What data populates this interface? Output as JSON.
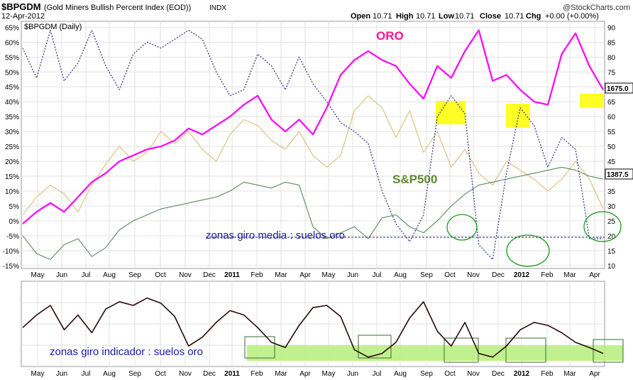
{
  "header": {
    "symbol": "$BPGDM",
    "name": "(Gold Miners Bullish Percent Index (EOD))",
    "exchange": "INDX",
    "date": "12-Apr-2012",
    "watermark": "@StockCharts.com",
    "open_label": "Open",
    "open": "10.71",
    "high_label": "High",
    "high": "10.71",
    "low_label": "Low",
    "low": "10.71",
    "close_label": "Close",
    "close": "10.71",
    "chg_label": "Chg",
    "chg": "+0.00 (+0.00%)",
    "panel_label": "$BPGDM (Daily)"
  },
  "annotations": {
    "oro": "ORO",
    "sp500": "S&P500",
    "zonas_media": "zonas giro media : suelos oro",
    "zonas_indicador": "zonas giro indicador : suelos oro",
    "gold_last": "1675.0",
    "sp_last": "1387.5"
  },
  "chart_data": [
    {
      "type": "line",
      "x_labels": [
        "May",
        "Jun",
        "Jul",
        "Aug",
        "Sep",
        "Oct",
        "Nov",
        "Dec",
        "2011",
        "Feb",
        "Mar",
        "Apr",
        "May",
        "Jun",
        "Jul",
        "Aug",
        "Sep",
        "Oct",
        "Nov",
        "Dec",
        "2012",
        "Feb",
        "Mar",
        "Apr"
      ],
      "left_axis": {
        "ticks": [
          "65%",
          "60%",
          "55%",
          "50%",
          "45%",
          "40%",
          "35%",
          "30%",
          "25%",
          "20%",
          "15%",
          "10%",
          "5%",
          "0%",
          "-5%",
          "-10%",
          "-15%"
        ],
        "ylim": [
          -16,
          67
        ]
      },
      "right_axis": {
        "ticks": [
          "90",
          "85",
          "80",
          "75",
          "70",
          "65",
          "60",
          "55",
          "50",
          "45",
          "40",
          "35",
          "30",
          "25",
          "20",
          "15",
          "10"
        ]
      },
      "series": [
        {
          "name": "ORO",
          "color": "#ff00ff",
          "values": [
            -1,
            3,
            6,
            3,
            8,
            13,
            16,
            20,
            22,
            24,
            25,
            27,
            31,
            29,
            32,
            35,
            39,
            42,
            34,
            30,
            34,
            29,
            38,
            49,
            54,
            57,
            54,
            52,
            46,
            41,
            52,
            48,
            57,
            64,
            47,
            49,
            44,
            40,
            39,
            56,
            63,
            52,
            44
          ]
        },
        {
          "name": "S&P500",
          "color": "#5a8a5a",
          "values": [
            -5,
            -11,
            -13,
            -8,
            -6,
            -12,
            -9,
            -3,
            0,
            2,
            4,
            5,
            6,
            7,
            8,
            10,
            13,
            12,
            11,
            13,
            12,
            -2,
            -6,
            -4,
            -2,
            -6,
            1,
            2,
            -2,
            -4,
            0,
            5,
            9,
            12,
            13,
            14,
            15,
            16,
            17,
            18,
            17,
            15,
            14
          ]
        },
        {
          "name": "",
          "color": "#d9b86a",
          "values": [
            2,
            8,
            12,
            9,
            3,
            12,
            19,
            25,
            20,
            23,
            30,
            26,
            30,
            24,
            20,
            29,
            34,
            32,
            27,
            24,
            30,
            22,
            18,
            22,
            37,
            42,
            38,
            28,
            37,
            23,
            30,
            18,
            24,
            16,
            12,
            20,
            17,
            14,
            10,
            14,
            20,
            14,
            4
          ]
        },
        {
          "name": "",
          "color": "#2b2b8f",
          "values": [
            58,
            48,
            64,
            47,
            53,
            64,
            52,
            44,
            56,
            60,
            58,
            61,
            64,
            61,
            50,
            42,
            44,
            56,
            52,
            44,
            55,
            46,
            40,
            33,
            30,
            26,
            10,
            -1,
            -7,
            2,
            35,
            42,
            36,
            -8,
            -13,
            16,
            38,
            32,
            18,
            28,
            24,
            -6,
            -6
          ]
        }
      ]
    },
    {
      "type": "line",
      "x_labels": [
        "May",
        "Jun",
        "Jul",
        "Aug",
        "Sep",
        "Oct",
        "Nov",
        "Dec",
        "2011",
        "Feb",
        "Mar",
        "Apr",
        "May",
        "Jun",
        "Jul",
        "Aug",
        "Sep",
        "Oct",
        "Nov",
        "Dec",
        "2012",
        "Feb",
        "Mar",
        "Apr"
      ],
      "series": [
        {
          "name": "",
          "color": "#2a0a0a",
          "values": [
            45,
            62,
            75,
            42,
            62,
            38,
            70,
            80,
            75,
            85,
            78,
            60,
            20,
            32,
            52,
            68,
            62,
            45,
            25,
            18,
            48,
            72,
            75,
            60,
            15,
            5,
            10,
            25,
            58,
            80,
            40,
            20,
            52,
            10,
            5,
            20,
            42,
            52,
            48,
            38,
            25,
            18,
            10
          ]
        }
      ]
    }
  ]
}
